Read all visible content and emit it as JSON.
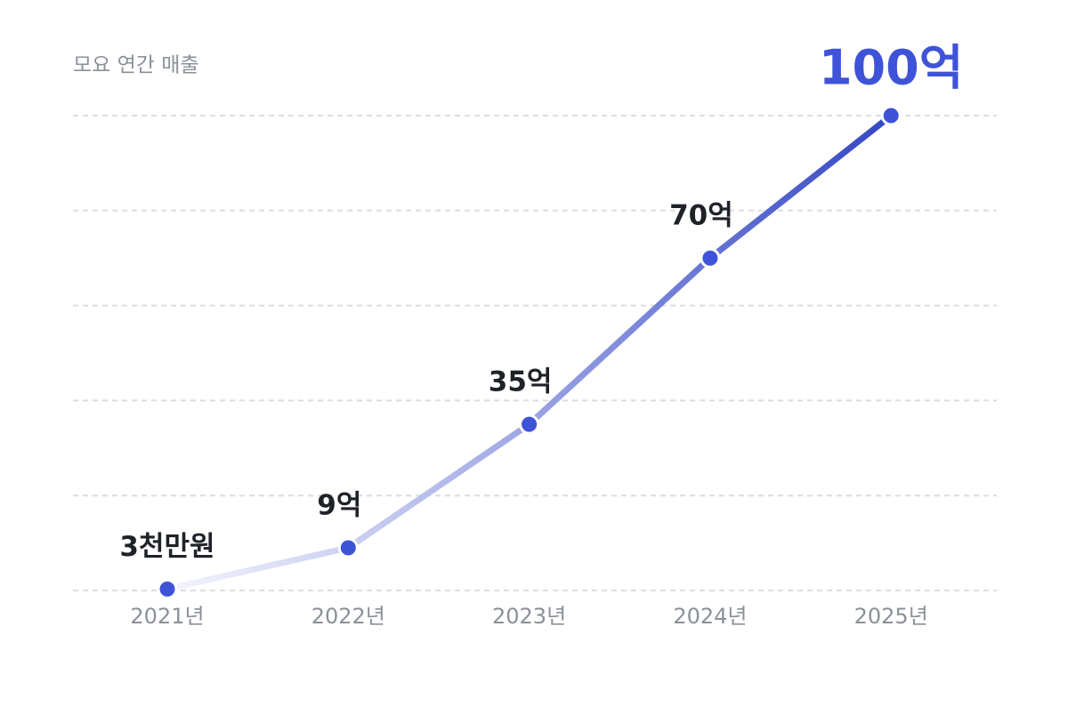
{
  "chart_data": {
    "type": "line",
    "title": "모요 연간 매출",
    "categories": [
      "2021년",
      "2022년",
      "2023년",
      "2024년",
      "2025년"
    ],
    "values": [
      0.3,
      9,
      35,
      70,
      100
    ],
    "value_labels": [
      "3천만원",
      "9억",
      "35억",
      "70억",
      "100억"
    ],
    "color": "#3f53d9",
    "line_gradient": [
      "#f3f4fe",
      "#3446c4"
    ],
    "ylim": [
      0,
      100
    ],
    "yticks": [
      0,
      20,
      40,
      60,
      80,
      100
    ],
    "grid": true
  }
}
